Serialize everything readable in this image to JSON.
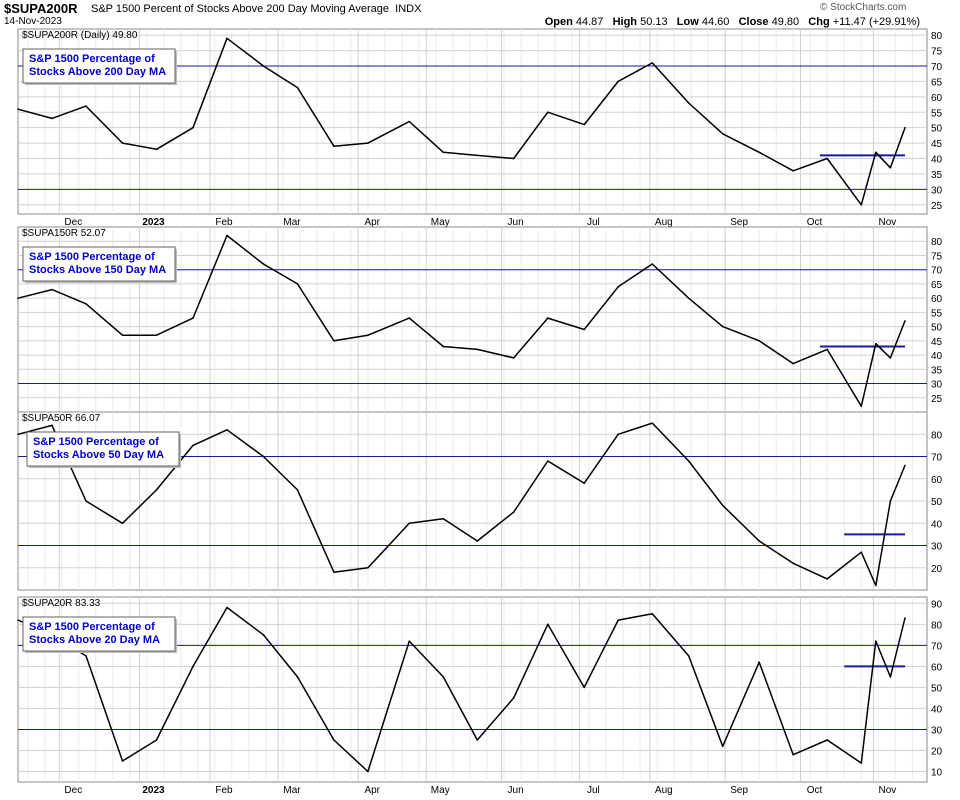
{
  "header": {
    "symbol": "$SUPA200R",
    "description": "S&P 1500 Percent of Stocks Above 200 Day Moving Average",
    "exchange": "INDX",
    "date": "14-Nov-2023",
    "brand": "© StockCharts.com",
    "open_label": "Open",
    "open": "44.87",
    "high_label": "High",
    "high": "50.13",
    "low_label": "Low",
    "low": "44.60",
    "close_label": "Close",
    "close": "49.80",
    "chg_label": "Chg",
    "chg": "+11.47 (+29.91%)"
  },
  "colors": {
    "grid": "#d0d0d0",
    "hline": "#1a1a9e",
    "series": "#000000",
    "box_text": "#0000cc",
    "box_border": "#606060"
  },
  "x_axis": {
    "labels": [
      "Dec",
      "2023",
      "Feb",
      "Mar",
      "Apr",
      "May",
      "Jun",
      "Jul",
      "Aug",
      "Sep",
      "Oct",
      "Nov"
    ],
    "bold_labels": [
      "2023"
    ]
  },
  "chart_data": [
    {
      "type": "line",
      "label": "$SUPA200R (Daily) 49.80",
      "box_text": [
        "S&P 1500 Percentage of",
        "Stocks Above 200 Day MA"
      ],
      "ylim": [
        22,
        82
      ],
      "yticks": [
        25,
        30,
        35,
        40,
        45,
        50,
        55,
        60,
        65,
        70,
        75,
        80
      ],
      "hlines": [
        70,
        30
      ],
      "resistance": {
        "from": "Oct 10",
        "to": "Nov 14",
        "value": 41
      },
      "x": [
        "Nov 14",
        "Nov 28",
        "Dec 12",
        "Dec 27",
        "Jan 10",
        "Jan 25",
        "Feb 8",
        "Feb 23",
        "Mar 9",
        "Mar 24",
        "Apr 7",
        "Apr 24",
        "May 8",
        "May 22",
        "Jun 6",
        "Jun 20",
        "Jul 5",
        "Jul 19",
        "Aug 2",
        "Aug 17",
        "Aug 31",
        "Sep 15",
        "Sep 29",
        "Oct 13",
        "Oct 27",
        "Nov 2",
        "Nov 8",
        "Nov 14"
      ],
      "y": [
        56,
        53,
        57,
        45,
        43,
        50,
        79,
        70,
        63,
        44,
        45,
        52,
        42,
        41,
        40,
        55,
        51,
        65,
        71,
        58,
        48,
        42,
        36,
        40,
        25,
        42,
        37,
        50
      ]
    },
    {
      "type": "line",
      "label": "$SUPA150R 52.07",
      "box_text": [
        "S&P 1500 Percentage of",
        "Stocks Above 150 Day MA"
      ],
      "ylim": [
        20,
        85
      ],
      "yticks": [
        25,
        30,
        35,
        40,
        45,
        50,
        55,
        60,
        65,
        70,
        75,
        80
      ],
      "hlines": [
        70,
        30
      ],
      "resistance": {
        "from": "Oct 10",
        "to": "Nov 14",
        "value": 43
      },
      "x": [
        "Nov 14",
        "Nov 28",
        "Dec 12",
        "Dec 27",
        "Jan 10",
        "Jan 25",
        "Feb 8",
        "Feb 23",
        "Mar 9",
        "Mar 24",
        "Apr 7",
        "Apr 24",
        "May 8",
        "May 22",
        "Jun 6",
        "Jun 20",
        "Jul 5",
        "Jul 19",
        "Aug 2",
        "Aug 17",
        "Aug 31",
        "Sep 15",
        "Sep 29",
        "Oct 13",
        "Oct 27",
        "Nov 2",
        "Nov 8",
        "Nov 14"
      ],
      "y": [
        60,
        63,
        58,
        47,
        47,
        53,
        82,
        72,
        65,
        45,
        47,
        53,
        43,
        42,
        39,
        53,
        49,
        64,
        72,
        60,
        50,
        45,
        37,
        42,
        22,
        44,
        39,
        52
      ]
    },
    {
      "type": "line",
      "label": "$SUPA50R 66.07",
      "box_text": [
        "S&P 1500 Percentage of",
        "Stocks Above 50 Day MA"
      ],
      "ylim": [
        10,
        90
      ],
      "yticks": [
        20,
        30,
        40,
        50,
        60,
        70,
        80
      ],
      "hlines": [
        70,
        30
      ],
      "resistance": {
        "from": "Oct 20",
        "to": "Nov 14",
        "value": 35
      },
      "x": [
        "Nov 14",
        "Nov 28",
        "Dec 12",
        "Dec 27",
        "Jan 10",
        "Jan 25",
        "Feb 8",
        "Feb 23",
        "Mar 9",
        "Mar 24",
        "Apr 7",
        "Apr 24",
        "May 8",
        "May 22",
        "Jun 6",
        "Jun 20",
        "Jul 5",
        "Jul 19",
        "Aug 2",
        "Aug 17",
        "Aug 31",
        "Sep 15",
        "Sep 29",
        "Oct 13",
        "Oct 27",
        "Nov 2",
        "Nov 8",
        "Nov 14"
      ],
      "y": [
        80,
        84,
        50,
        40,
        55,
        75,
        82,
        70,
        55,
        18,
        20,
        40,
        42,
        32,
        45,
        68,
        58,
        80,
        85,
        68,
        48,
        32,
        22,
        15,
        27,
        12,
        50,
        66
      ]
    },
    {
      "type": "line",
      "label": "$SUPA20R 83.33",
      "box_text": [
        "S&P 1500 Percentage of",
        "Stocks Above 20 Day MA"
      ],
      "ylim": [
        5,
        93
      ],
      "yticks": [
        10,
        20,
        30,
        40,
        50,
        60,
        70,
        80,
        90
      ],
      "hlines": [
        70,
        30
      ],
      "resistance": {
        "from": "Oct 20",
        "to": "Nov 14",
        "value": 60
      },
      "x": [
        "Nov 14",
        "Nov 28",
        "Dec 12",
        "Dec 27",
        "Jan 10",
        "Jan 25",
        "Feb 8",
        "Feb 23",
        "Mar 9",
        "Mar 24",
        "Apr 7",
        "Apr 24",
        "May 8",
        "May 22",
        "Jun 6",
        "Jun 20",
        "Jul 5",
        "Jul 19",
        "Aug 2",
        "Aug 17",
        "Aug 31",
        "Sep 15",
        "Sep 29",
        "Oct 13",
        "Oct 27",
        "Nov 2",
        "Nov 8",
        "Nov 14"
      ],
      "y": [
        82,
        75,
        65,
        15,
        25,
        60,
        88,
        75,
        55,
        25,
        10,
        72,
        55,
        25,
        45,
        80,
        50,
        82,
        85,
        65,
        22,
        62,
        18,
        25,
        14,
        72,
        55,
        83
      ]
    }
  ]
}
